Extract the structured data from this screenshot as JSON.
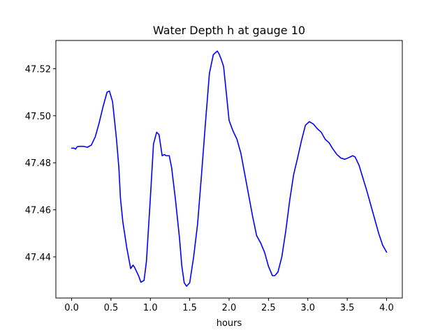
{
  "chart_data": {
    "type": "line",
    "title": "Water Depth h at gauge 10",
    "xlabel": "hours",
    "ylabel": "",
    "xlim": [
      -0.2,
      4.2
    ],
    "ylim": [
      47.4225,
      47.532
    ],
    "xticks": [
      0.0,
      0.5,
      1.0,
      1.5,
      2.0,
      2.5,
      3.0,
      3.5,
      4.0
    ],
    "xtick_labels": [
      "0.0",
      "0.5",
      "1.0",
      "1.5",
      "2.0",
      "2.5",
      "3.0",
      "3.5",
      "4.0"
    ],
    "yticks": [
      47.44,
      47.46,
      47.48,
      47.5,
      47.52
    ],
    "ytick_labels": [
      "47.44",
      "47.46",
      "47.48",
      "47.50",
      "47.52"
    ],
    "grid": false,
    "series": [
      {
        "color": "#0000ff",
        "x": [
          0.0,
          0.03,
          0.05,
          0.07,
          0.1,
          0.15,
          0.2,
          0.25,
          0.3,
          0.35,
          0.4,
          0.45,
          0.48,
          0.52,
          0.57,
          0.6,
          0.62,
          0.65,
          0.7,
          0.75,
          0.78,
          0.8,
          0.85,
          0.88,
          0.92,
          0.95,
          1.0,
          1.04,
          1.08,
          1.11,
          1.15,
          1.18,
          1.2,
          1.24,
          1.27,
          1.32,
          1.37,
          1.4,
          1.43,
          1.46,
          1.5,
          1.55,
          1.6,
          1.65,
          1.7,
          1.75,
          1.8,
          1.85,
          1.87,
          1.9,
          1.93,
          1.97,
          2.0,
          2.05,
          2.1,
          2.15,
          2.2,
          2.25,
          2.3,
          2.35,
          2.4,
          2.45,
          2.5,
          2.55,
          2.58,
          2.62,
          2.67,
          2.72,
          2.77,
          2.82,
          2.87,
          2.92,
          2.97,
          3.02,
          3.07,
          3.12,
          3.17,
          3.22,
          3.27,
          3.32,
          3.37,
          3.42,
          3.47,
          3.52,
          3.57,
          3.6,
          3.65,
          3.7,
          3.75,
          3.8,
          3.85,
          3.9,
          3.95,
          4.0
        ],
        "y": [
          47.4862,
          47.4862,
          47.4858,
          47.4868,
          47.487,
          47.487,
          47.4866,
          47.4875,
          47.491,
          47.497,
          47.504,
          47.51,
          47.5105,
          47.506,
          47.49,
          47.478,
          47.465,
          47.455,
          47.444,
          47.435,
          47.4365,
          47.4355,
          47.432,
          47.4292,
          47.43,
          47.438,
          47.465,
          47.488,
          47.493,
          47.492,
          47.483,
          47.4835,
          47.483,
          47.483,
          47.478,
          47.464,
          47.448,
          47.436,
          47.429,
          47.4275,
          47.429,
          47.44,
          47.454,
          47.475,
          47.497,
          47.518,
          47.526,
          47.5275,
          47.5265,
          47.524,
          47.521,
          47.508,
          47.498,
          47.4935,
          47.49,
          47.484,
          47.475,
          47.466,
          47.457,
          47.449,
          47.446,
          47.442,
          47.436,
          47.432,
          47.432,
          47.4335,
          47.44,
          47.451,
          47.464,
          47.475,
          47.482,
          47.4895,
          47.496,
          47.4975,
          47.4965,
          47.4945,
          47.493,
          47.49,
          47.4885,
          47.4858,
          47.4835,
          47.482,
          47.4815,
          47.4822,
          47.483,
          47.4825,
          47.479,
          47.4735,
          47.468,
          47.462,
          47.456,
          47.45,
          47.445,
          47.442
        ]
      }
    ]
  }
}
